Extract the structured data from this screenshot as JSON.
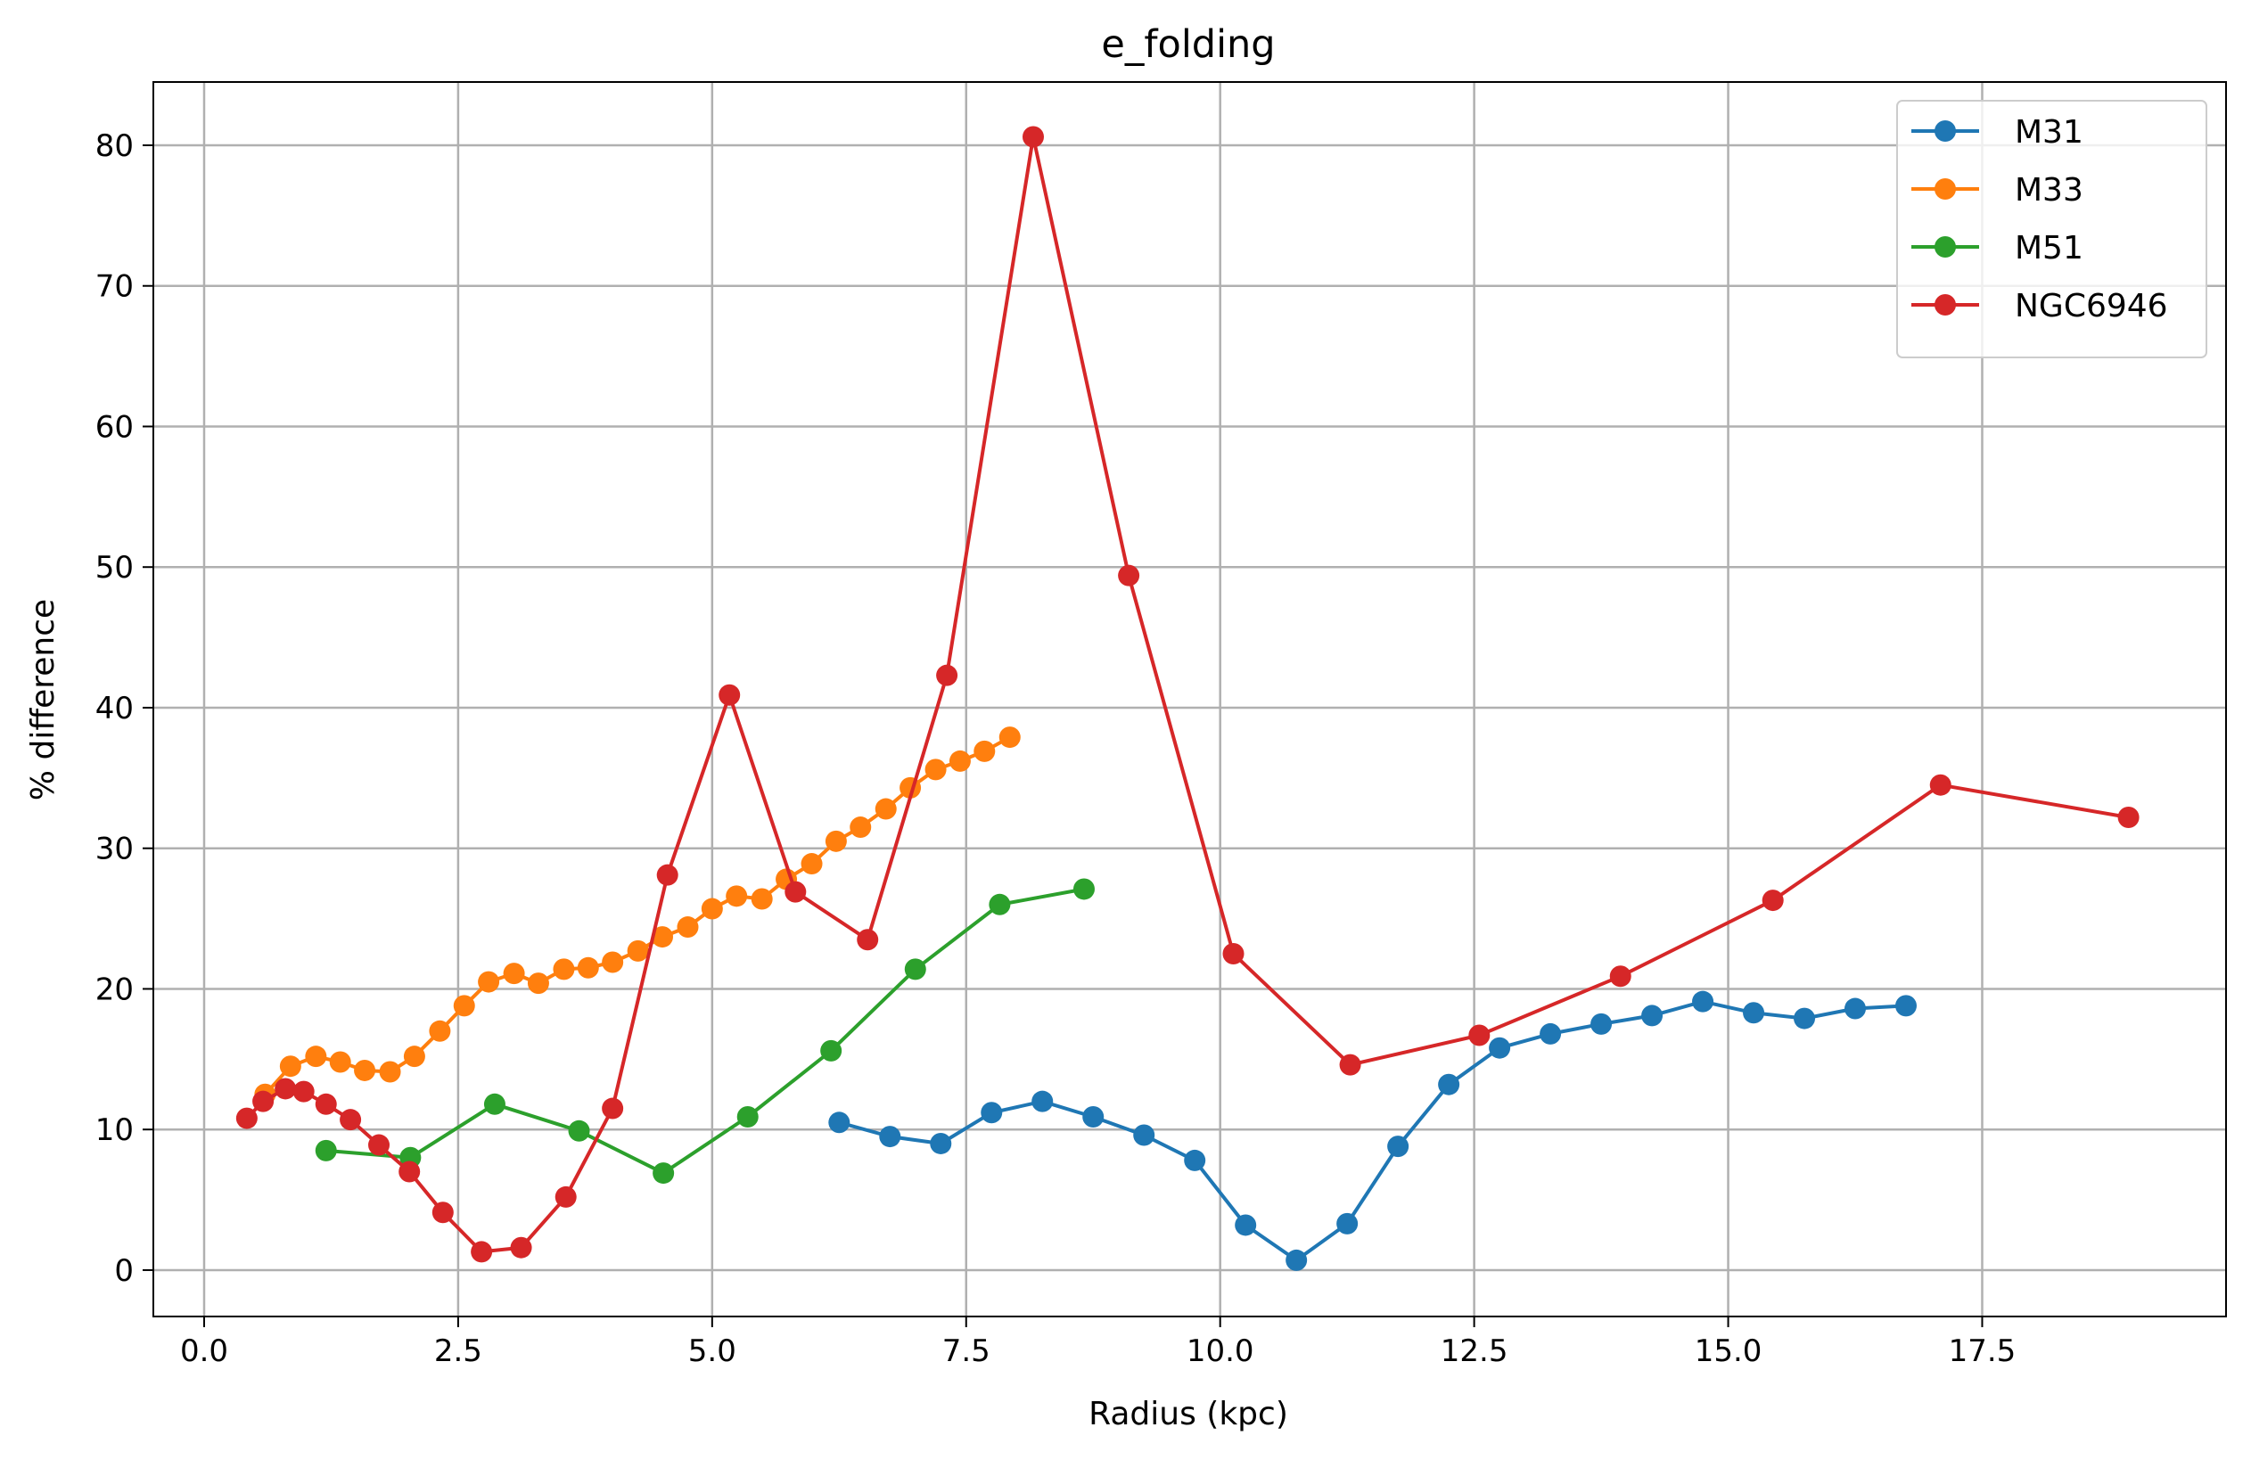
{
  "chart_data": {
    "type": "line",
    "title": "e_folding",
    "xlabel": "Radius (kpc)",
    "ylabel": "% difference",
    "xlim": [
      -0.5,
      19.9
    ],
    "ylim": [
      -3.3,
      84.5
    ],
    "xticks": [
      0.0,
      2.5,
      5.0,
      7.5,
      10.0,
      12.5,
      15.0,
      17.5
    ],
    "xtick_labels": [
      "0.0",
      "2.5",
      "5.0",
      "7.5",
      "10.0",
      "12.5",
      "15.0",
      "17.5"
    ],
    "yticks": [
      0,
      10,
      20,
      30,
      40,
      50,
      60,
      70,
      80
    ],
    "ytick_labels": [
      "0",
      "10",
      "20",
      "30",
      "40",
      "50",
      "60",
      "70",
      "80"
    ],
    "grid": true,
    "legend_position": "top-right",
    "series": [
      {
        "name": "M31",
        "color": "#1f77b4",
        "x": [
          6.25,
          6.75,
          7.25,
          7.75,
          8.25,
          8.75,
          9.25,
          9.75,
          10.25,
          10.75,
          11.25,
          11.75,
          12.25,
          12.75,
          13.25,
          13.75,
          14.25,
          14.75,
          15.25,
          15.75,
          16.25,
          16.75
        ],
        "y": [
          10.5,
          9.5,
          9.0,
          11.2,
          12.0,
          10.9,
          9.6,
          7.8,
          3.2,
          0.7,
          3.3,
          8.8,
          13.2,
          15.8,
          16.8,
          17.5,
          18.1,
          19.1,
          18.3,
          17.9,
          18.6,
          18.8
        ]
      },
      {
        "name": "M33",
        "color": "#ff7f0e",
        "x": [
          0.6,
          0.85,
          1.1,
          1.34,
          1.58,
          1.83,
          2.07,
          2.32,
          2.56,
          2.8,
          3.05,
          3.29,
          3.54,
          3.78,
          4.02,
          4.27,
          4.51,
          4.76,
          5.0,
          5.24,
          5.49,
          5.73,
          5.98,
          6.22,
          6.46,
          6.71,
          6.95,
          7.2,
          7.44,
          7.68,
          7.93
        ],
        "y": [
          12.5,
          14.5,
          15.2,
          14.8,
          14.2,
          14.1,
          15.2,
          17.0,
          18.8,
          20.5,
          21.1,
          20.4,
          21.4,
          21.5,
          21.9,
          22.7,
          23.7,
          24.4,
          25.7,
          26.6,
          26.4,
          27.8,
          28.9,
          30.5,
          31.5,
          32.8,
          34.3,
          35.6,
          36.2,
          36.9,
          37.9
        ]
      },
      {
        "name": "M51",
        "color": "#2ca02c",
        "x": [
          1.2,
          2.03,
          2.86,
          3.69,
          4.52,
          5.35,
          6.17,
          7.0,
          7.83,
          8.66
        ],
        "y": [
          8.5,
          8.0,
          11.8,
          9.9,
          6.9,
          10.9,
          15.6,
          21.4,
          26.0,
          27.1
        ]
      },
      {
        "name": "NGC6946",
        "color": "#d62728",
        "x": [
          0.42,
          0.58,
          0.8,
          0.98,
          1.2,
          1.44,
          1.72,
          2.02,
          2.35,
          2.73,
          3.12,
          3.56,
          4.02,
          4.56,
          5.17,
          5.82,
          6.53,
          7.31,
          8.16,
          9.1,
          10.13,
          11.28,
          12.55,
          13.94,
          15.44,
          17.09,
          18.94
        ],
        "y": [
          10.8,
          12.0,
          12.9,
          12.7,
          11.8,
          10.7,
          8.9,
          7.0,
          4.1,
          1.3,
          1.6,
          5.2,
          11.5,
          28.1,
          40.9,
          26.9,
          23.5,
          42.3,
          80.6,
          49.4,
          22.5,
          14.6,
          16.7,
          20.9,
          26.3,
          34.5,
          32.2
        ]
      }
    ]
  }
}
